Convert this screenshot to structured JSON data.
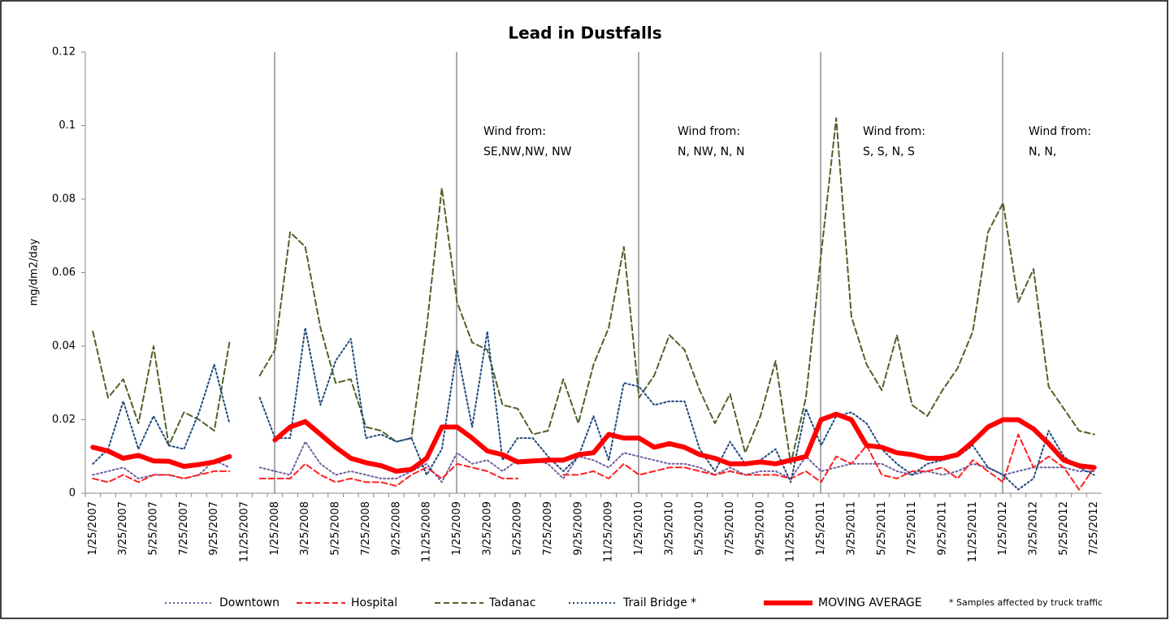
{
  "chart_data": {
    "type": "line",
    "title": "Lead in Dustfalls",
    "y_label": "mg/dm2/day",
    "categories": [
      "1/25/2007",
      null,
      "3/25/2007",
      null,
      "5/25/2007",
      null,
      "7/25/2007",
      null,
      "9/25/2007",
      null,
      "11/25/2007",
      null,
      "1/25/2008",
      null,
      "3/25/2008",
      null,
      "5/25/2008",
      null,
      "7/25/2008",
      null,
      "9/25/2008",
      null,
      "11/25/2008",
      null,
      "1/25/2009",
      null,
      "3/25/2009",
      null,
      "5/25/2009",
      null,
      "7/25/2009",
      null,
      "9/25/2009",
      null,
      "11/25/2009",
      null,
      "1/25/2010",
      null,
      "3/25/2010",
      null,
      "5/25/2010",
      null,
      "7/25/2010",
      null,
      "9/25/2010",
      null,
      "11/25/2010",
      null,
      "1/25/2011",
      null,
      "3/25/2011",
      null,
      "5/25/2011",
      null,
      "7/25/2011",
      null,
      "9/25/2011",
      null,
      "11/25/2011",
      null,
      "1/25/2012",
      null,
      "3/25/2012",
      null,
      "5/25/2012",
      null,
      "7/25/2012"
    ],
    "ylim": [
      0,
      0.12
    ],
    "yticks": [
      0,
      0.02,
      0.04,
      0.06,
      0.08,
      0.1,
      0.12
    ],
    "series": [
      {
        "name": "Downtown",
        "color": "#7060a0",
        "style": "dotted",
        "values": [
          0.005,
          0.006,
          0.007,
          0.004,
          0.005,
          0.005,
          0.004,
          0.005,
          0.009,
          0.007,
          null,
          0.007,
          0.006,
          0.005,
          0.014,
          0.008,
          0.005,
          0.006,
          0.005,
          0.004,
          0.004,
          0.006,
          0.008,
          0.003,
          0.011,
          0.008,
          0.009,
          0.006,
          0.009,
          0.009,
          0.008,
          0.004,
          0.01,
          0.009,
          0.007,
          0.011,
          0.01,
          0.009,
          0.008,
          0.008,
          0.007,
          0.005,
          0.007,
          0.005,
          0.006,
          0.006,
          0.004,
          0.01,
          0.006,
          0.007,
          0.008,
          0.008,
          0.008,
          0.006,
          0.005,
          0.006,
          0.005,
          0.006,
          0.008,
          0.007,
          0.005,
          0.006,
          0.007,
          0.007,
          0.007,
          0.006,
          0.006
        ]
      },
      {
        "name": "Hospital",
        "color": "#ff2020",
        "style": "dashed",
        "values": [
          0.004,
          0.003,
          0.005,
          0.003,
          0.005,
          0.005,
          0.004,
          0.005,
          0.006,
          0.006,
          null,
          0.004,
          0.004,
          0.004,
          0.008,
          0.005,
          0.003,
          0.004,
          0.003,
          0.003,
          0.002,
          0.005,
          0.007,
          0.004,
          0.008,
          0.007,
          0.006,
          0.004,
          0.004,
          null,
          null,
          0.005,
          0.005,
          0.006,
          0.004,
          0.008,
          0.005,
          0.006,
          0.007,
          0.007,
          0.006,
          0.005,
          0.006,
          0.005,
          0.005,
          0.005,
          0.004,
          0.006,
          0.003,
          0.01,
          0.008,
          0.013,
          0.005,
          0.004,
          0.006,
          0.006,
          0.007,
          0.004,
          0.009,
          0.006,
          0.003,
          0.016,
          0.007,
          0.01,
          0.007,
          0.001,
          0.007
        ]
      },
      {
        "name": "Tadanac",
        "color": "#4f6228",
        "style": "dashed",
        "values": [
          0.044,
          0.026,
          0.031,
          0.019,
          0.04,
          0.013,
          0.022,
          0.02,
          0.017,
          0.041,
          null,
          0.032,
          0.039,
          0.071,
          0.067,
          0.045,
          0.03,
          0.031,
          0.018,
          0.017,
          0.014,
          0.015,
          0.045,
          0.083,
          0.052,
          0.041,
          0.039,
          0.024,
          0.023,
          0.016,
          0.017,
          0.031,
          0.019,
          0.035,
          0.045,
          0.067,
          0.026,
          0.032,
          0.043,
          0.039,
          0.028,
          0.019,
          0.027,
          0.011,
          0.021,
          0.036,
          0.008,
          0.026,
          0.065,
          0.102,
          0.048,
          0.035,
          0.028,
          0.043,
          0.024,
          0.021,
          0.028,
          0.034,
          0.044,
          0.071,
          0.079,
          0.052,
          0.061,
          0.029,
          0.023,
          0.017,
          0.016
        ]
      },
      {
        "name": "Trail Bridge *",
        "color": "#1f497d",
        "style": "dotted",
        "values": [
          0.008,
          0.012,
          0.025,
          0.012,
          0.021,
          0.013,
          0.012,
          0.022,
          0.035,
          0.019,
          null,
          0.026,
          0.015,
          0.015,
          0.045,
          0.024,
          0.036,
          0.042,
          0.015,
          0.016,
          0.014,
          0.015,
          0.005,
          0.012,
          0.039,
          0.018,
          0.044,
          0.009,
          0.015,
          0.015,
          0.01,
          0.006,
          0.01,
          0.021,
          0.009,
          0.03,
          0.029,
          0.024,
          0.025,
          0.025,
          0.012,
          0.006,
          0.014,
          0.008,
          0.009,
          0.012,
          0.003,
          0.023,
          0.013,
          0.021,
          0.022,
          0.019,
          0.012,
          0.008,
          0.005,
          0.008,
          0.009,
          0.01,
          0.013,
          0.007,
          0.005,
          0.001,
          0.004,
          0.017,
          0.01,
          0.007,
          0.005
        ]
      },
      {
        "name": "MOVING AVERAGE",
        "color": "#ff0000",
        "style": "thick",
        "values": [
          0.0125,
          0.0115,
          0.0095,
          0.0103,
          0.0088,
          0.0087,
          0.0073,
          0.0078,
          0.0085,
          0.01,
          null,
          null,
          0.0145,
          0.018,
          0.0195,
          0.016,
          0.0125,
          0.0095,
          0.0083,
          0.0075,
          0.006,
          0.0065,
          0.0095,
          0.018,
          0.018,
          0.015,
          0.0115,
          0.0105,
          0.0085,
          0.0088,
          0.009,
          0.009,
          0.0105,
          0.011,
          0.016,
          0.015,
          0.015,
          0.0125,
          0.0135,
          0.0125,
          0.0105,
          0.0095,
          0.008,
          0.008,
          0.0085,
          0.008,
          0.009,
          0.01,
          0.02,
          0.0215,
          0.02,
          0.013,
          0.0125,
          0.011,
          0.0105,
          0.0095,
          0.0095,
          0.0105,
          0.014,
          0.018,
          0.02,
          0.02,
          0.0175,
          0.0135,
          0.009,
          0.0075,
          0.007
        ]
      }
    ],
    "annotations": [
      [
        "Wind from:",
        "SE,NW,NW, NW"
      ],
      [
        "Wind from:",
        "N, NW, N, N"
      ],
      [
        "Wind from:",
        "S,  S,   N,  S"
      ],
      [
        "Wind from:",
        "N,  N,"
      ]
    ],
    "footnote": "* Samples affected by truck traffic"
  }
}
